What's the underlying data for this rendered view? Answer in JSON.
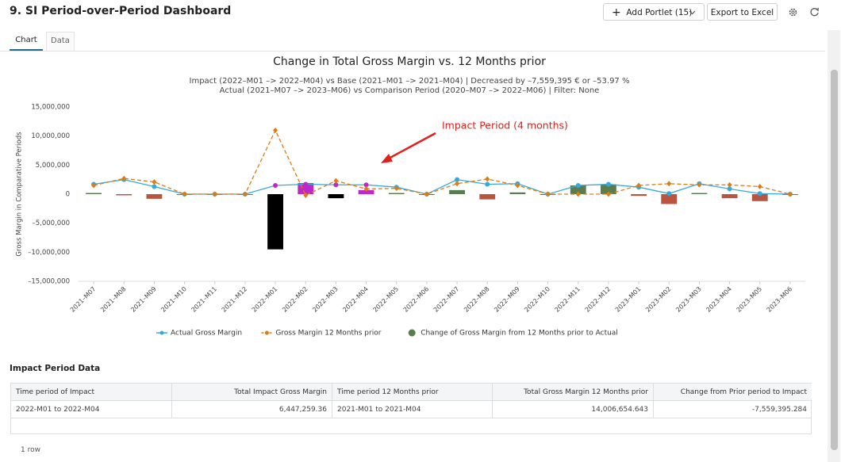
{
  "header": {
    "title": "9. SI Period-over-Period Dashboard",
    "add_button": "Add Portlet (15)",
    "export_button": "Export to Excel"
  },
  "tabs": [
    "Chart",
    "Data"
  ],
  "chart_data": {
    "type": "combo",
    "title": "Change in Total Gross Margin vs. 12 Months prior",
    "subtitle": [
      "Impact (2022–M01 –> 2022–M04) vs Base (2021–M01 –> 2021–M04) | Decreased by –7,559,395 € or –53.97 %",
      "Actual (2021–M07 –> 2023–M06) vs Comparison Period (2020–M07 –> 2022–M06) | Filter: None"
    ],
    "y_label": "Gross Margin in Comparative Periods",
    "annotation": "Impact Period (4 months)",
    "categories": [
      "2021–M07",
      "2021–M08",
      "2021–M09",
      "2021–M10",
      "2021–M11",
      "2021–M12",
      "2022–M01",
      "2022–M02",
      "2022–M03",
      "2022–M04",
      "2022–M05",
      "2022–M06",
      "2022–M07",
      "2022–M08",
      "2022–M09",
      "2022–M10",
      "2022–M11",
      "2022–M12",
      "2023–M01",
      "2023–M02",
      "2023–M03",
      "2023–M04",
      "2023–M05",
      "2023–M06"
    ],
    "series": [
      {
        "name": "Actual Gross Margin",
        "type": "line",
        "color": "#35a9db",
        "point_colors": [
          "#35a9db",
          "#35a9db",
          "#35a9db",
          "#35a9db",
          "#35a9db",
          "#35a9db",
          "#c026c8",
          "#c026c8",
          "#c026c8",
          "#c026c8",
          "#35a9db",
          "#35a9db",
          "#35a9db",
          "#35a9db",
          "#35a9db",
          "#35a9db",
          "#35a9db",
          "#35a9db",
          "#35a9db",
          "#35a9db",
          "#35a9db",
          "#35a9db",
          "#35a9db",
          "#35a9db"
        ],
        "values": [
          1700000,
          2500000,
          1300000,
          0,
          0,
          0,
          1500000,
          1700000,
          1600000,
          1600000,
          1200000,
          0,
          2500000,
          1700000,
          1800000,
          0,
          1500000,
          1700000,
          1200000,
          100000,
          1800000,
          900000,
          100000,
          0
        ]
      },
      {
        "name": "Gross Margin 12 Months prior",
        "type": "dashed-line",
        "color": "#e07b10",
        "values": [
          1500000,
          2700000,
          2100000,
          0,
          0,
          0,
          11000000,
          -200000,
          2300000,
          900000,
          1000000,
          0,
          1800000,
          2600000,
          1500000,
          0,
          0,
          0,
          1500000,
          1800000,
          1600000,
          1600000,
          1300000,
          0
        ]
      },
      {
        "name": "Change of Gross Margin from 12 Months prior to Actual",
        "type": "bar",
        "color": "#5a7d4f",
        "colors": [
          "#5a7d4f",
          "#b85440",
          "#b85440",
          "#5a7d4f",
          "#5a7d4f",
          "#5a7d4f",
          "#000000",
          "#c026c8",
          "#000000",
          "#c026c8",
          "#5a7d4f",
          "#5a7d4f",
          "#5a7d4f",
          "#b85440",
          "#5a7d4f",
          "#5a7d4f",
          "#5a7d4f",
          "#5a7d4f",
          "#b85440",
          "#b85440",
          "#5a7d4f",
          "#b85440",
          "#b85440",
          "#5a7d4f"
        ],
        "values": [
          200000,
          -200000,
          -800000,
          0,
          0,
          0,
          -9500000,
          1900000,
          -700000,
          700000,
          200000,
          0,
          700000,
          -900000,
          300000,
          0,
          1500000,
          1700000,
          -300000,
          -1700000,
          200000,
          -700000,
          -1200000,
          0
        ]
      }
    ],
    "ylim": [
      -15000000,
      15000000
    ],
    "yticks": [
      {
        "value": -15000000,
        "label": "–15,000,000"
      },
      {
        "value": -10000000,
        "label": "–10,000,000"
      },
      {
        "value": -5000000,
        "label": "–5,000,000"
      },
      0,
      {
        "value": 5000000,
        "label": "5,000,000"
      },
      {
        "value": 10000000,
        "label": "10,000,000"
      },
      {
        "value": 15000000,
        "label": "15,000,000"
      }
    ],
    "grid": false,
    "legend": "bottom"
  },
  "table": {
    "title": "Impact Period Data",
    "columns": [
      "Time period of Impact",
      "Total Impact Gross Margin",
      "Time period 12 Months prior",
      "Total Gross Margin 12 Months prior",
      "Change from Prior period to Impact"
    ],
    "rows": [
      [
        "2022-M01 to 2022-M04",
        "6,447,259.36",
        "2021-M01 to 2021-M04",
        "14,006,654.643",
        "-7,559,395.284"
      ]
    ],
    "footer": "1 row"
  }
}
